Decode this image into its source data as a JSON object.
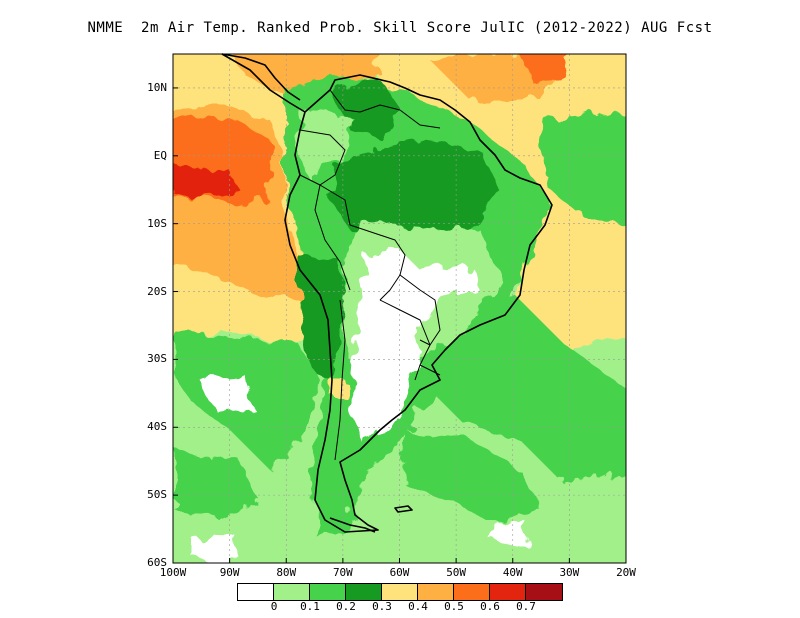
{
  "title": "NMME  2m Air Temp. Ranked Prob. Skill Score JulIC (2012-2022) AUG Fcst",
  "lat_labels": [
    "10N",
    "EQ",
    "10S",
    "20S",
    "30S",
    "40S",
    "50S",
    "60S"
  ],
  "lon_labels": [
    "100W",
    "90W",
    "80W",
    "70W",
    "60W",
    "50W",
    "40W",
    "30W",
    "20W"
  ],
  "colorbar": {
    "colors": [
      "#ffffff",
      "#a2f089",
      "#46d24b",
      "#169a21",
      "#fee37d",
      "#feb043",
      "#fd6e1b",
      "#e3240e",
      "#a50f15"
    ],
    "labels": [
      "0",
      "0.1",
      "0.2",
      "0.3",
      "0.4",
      "0.5",
      "0.6",
      "0.7"
    ]
  },
  "map": {
    "lon_range": [
      -100,
      -20
    ],
    "lat_range": [
      -60,
      15
    ],
    "lat_ticks": [
      10,
      0,
      -10,
      -20,
      -30,
      -40,
      -50,
      -60
    ],
    "lon_ticks": [
      -100,
      -90,
      -80,
      -70,
      -60,
      -50,
      -40,
      -30,
      -20
    ],
    "gridlines": true
  }
}
